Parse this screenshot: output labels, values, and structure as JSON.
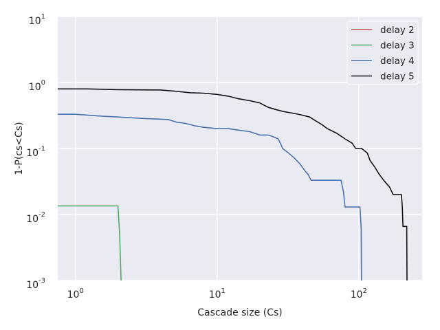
{
  "chart_data": {
    "type": "line",
    "xlabel": "Cascade size (Cs)",
    "ylabel": "1-P(cs<Cs)",
    "xscale": "log",
    "yscale": "log",
    "xlim": [
      0.75,
      280
    ],
    "ylim": [
      0.001,
      10
    ],
    "grid": true,
    "legend_position": "top-right",
    "x_ticks": [
      {
        "value": 1,
        "base": "10",
        "exp": "0"
      },
      {
        "value": 10,
        "base": "10",
        "exp": "1"
      },
      {
        "value": 100,
        "base": "10",
        "exp": "2"
      }
    ],
    "y_ticks": [
      {
        "value": 10,
        "base": "10",
        "exp": "1"
      },
      {
        "value": 1,
        "base": "10",
        "exp": "0"
      },
      {
        "value": 0.1,
        "base": "10",
        "exp": "-1"
      },
      {
        "value": 0.01,
        "base": "10",
        "exp": "-2"
      },
      {
        "value": 0.001,
        "base": "10",
        "exp": "-3"
      }
    ],
    "series": [
      {
        "name": "delay 2",
        "color": "#c44e52",
        "points": []
      },
      {
        "name": "delay 3",
        "color": "#55a868",
        "points": [
          [
            0.75,
            0.0135
          ],
          [
            2.0,
            0.0135
          ],
          [
            2.0,
            0.0125
          ],
          [
            2.05,
            0.005
          ],
          [
            2.1,
            0.001
          ]
        ]
      },
      {
        "name": "delay 4",
        "color": "#4c72b0",
        "points": [
          [
            0.75,
            0.33
          ],
          [
            1.0,
            0.33
          ],
          [
            1.5,
            0.31
          ],
          [
            2,
            0.3
          ],
          [
            3,
            0.285
          ],
          [
            4.5,
            0.275
          ],
          [
            5.2,
            0.25
          ],
          [
            6,
            0.24
          ],
          [
            7,
            0.22
          ],
          [
            8,
            0.21
          ],
          [
            10,
            0.2
          ],
          [
            12,
            0.2
          ],
          [
            14,
            0.19
          ],
          [
            17,
            0.18
          ],
          [
            20,
            0.16
          ],
          [
            23,
            0.16
          ],
          [
            25,
            0.15
          ],
          [
            27,
            0.14
          ],
          [
            28,
            0.12
          ],
          [
            29,
            0.1
          ],
          [
            32,
            0.085
          ],
          [
            35,
            0.072
          ],
          [
            38,
            0.06
          ],
          [
            40,
            0.052
          ],
          [
            42,
            0.045
          ],
          [
            44,
            0.04
          ],
          [
            46,
            0.033
          ],
          [
            60,
            0.033
          ],
          [
            75,
            0.033
          ],
          [
            78,
            0.022
          ],
          [
            80,
            0.013
          ],
          [
            102,
            0.013
          ],
          [
            104,
            0.006
          ],
          [
            104.5,
            0.001
          ]
        ]
      },
      {
        "name": "delay 5",
        "color": "#111111",
        "points": [
          [
            0.75,
            0.8
          ],
          [
            1.2,
            0.8
          ],
          [
            2,
            0.78
          ],
          [
            4,
            0.77
          ],
          [
            5,
            0.74
          ],
          [
            6.5,
            0.7
          ],
          [
            8,
            0.69
          ],
          [
            10,
            0.66
          ],
          [
            12,
            0.62
          ],
          [
            14,
            0.57
          ],
          [
            17,
            0.53
          ],
          [
            20,
            0.49
          ],
          [
            23,
            0.42
          ],
          [
            27,
            0.38
          ],
          [
            30,
            0.36
          ],
          [
            35,
            0.34
          ],
          [
            40,
            0.32
          ],
          [
            45,
            0.3
          ],
          [
            50,
            0.26
          ],
          [
            55,
            0.23
          ],
          [
            60,
            0.2
          ],
          [
            70,
            0.17
          ],
          [
            80,
            0.14
          ],
          [
            90,
            0.12
          ],
          [
            95,
            0.1
          ],
          [
            105,
            0.1
          ],
          [
            115,
            0.085
          ],
          [
            120,
            0.066
          ],
          [
            130,
            0.052
          ],
          [
            140,
            0.04
          ],
          [
            150,
            0.033
          ],
          [
            165,
            0.026
          ],
          [
            175,
            0.02
          ],
          [
            200,
            0.02
          ],
          [
            203,
            0.013
          ],
          [
            205,
            0.0066
          ],
          [
            218,
            0.0066
          ],
          [
            219,
            0.001
          ]
        ]
      }
    ]
  }
}
